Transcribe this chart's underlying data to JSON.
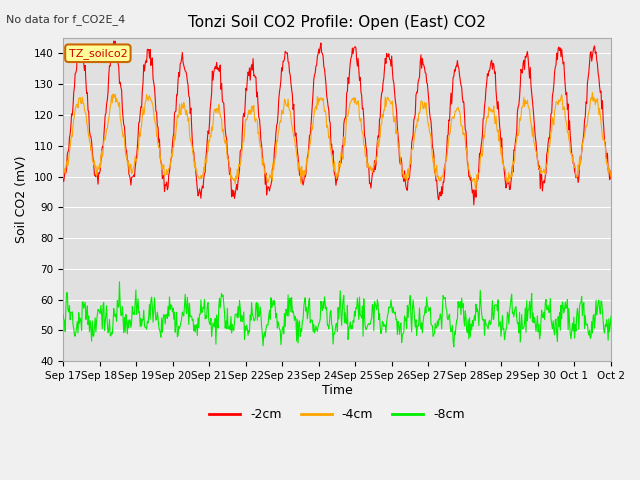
{
  "title": "Tonzi Soil CO2 Profile: Open (East) CO2",
  "subtitle": "No data for f_CO2E_4",
  "ylabel": "Soil CO2 (mV)",
  "xlabel": "Time",
  "ylim": [
    40,
    145
  ],
  "yticks": [
    40,
    50,
    60,
    70,
    80,
    90,
    100,
    110,
    120,
    130,
    140
  ],
  "xtick_labels": [
    "Sep 17",
    "Sep 18",
    "Sep 19",
    "Sep 20",
    "Sep 21",
    "Sep 22",
    "Sep 23",
    "Sep 24",
    "Sep 25",
    "Sep 26",
    "Sep 27",
    "Sep 28",
    "Sep 29",
    "Sep 30",
    "Oct 1",
    "Oct 2"
  ],
  "color_2cm": "#ff0000",
  "color_4cm": "#ffa500",
  "color_8cm": "#00ee00",
  "legend_label_2cm": "-2cm",
  "legend_label_4cm": "-4cm",
  "legend_label_8cm": "-8cm",
  "annotation_label": "TZ_soilco2",
  "bg_color": "#e0e0e0",
  "n_days": 16,
  "pts_per_day": 48
}
